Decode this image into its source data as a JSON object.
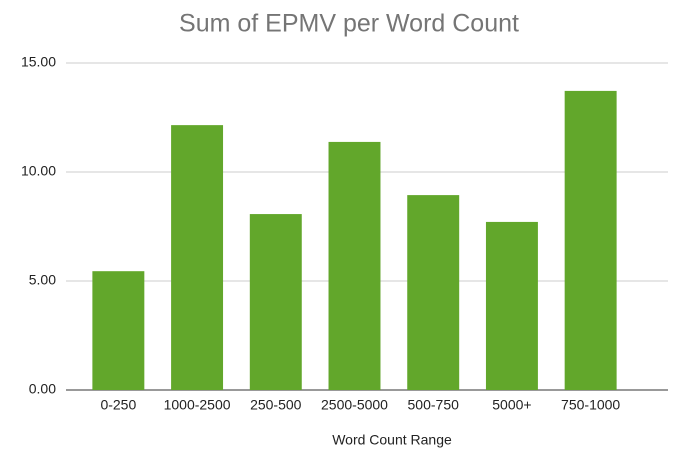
{
  "chart_data": {
    "type": "bar",
    "title": "Sum of EPMV per Word Count",
    "x_label": "Word Count Range",
    "categories": [
      "0-250",
      "1000-2500",
      "250-500",
      "2500-5000",
      "500-750",
      "5000+",
      "750-1000"
    ],
    "values": [
      5.45,
      12.15,
      8.07,
      11.38,
      8.94,
      7.71,
      13.72
    ],
    "color": "#62a72b",
    "ylim": [
      0,
      15
    ],
    "yticks": [
      {
        "value": 0,
        "label": "0.00"
      },
      {
        "value": 5,
        "label": "5.00"
      },
      {
        "value": 10,
        "label": "10.00"
      },
      {
        "value": 15,
        "label": "15.00"
      }
    ],
    "grid": true
  }
}
